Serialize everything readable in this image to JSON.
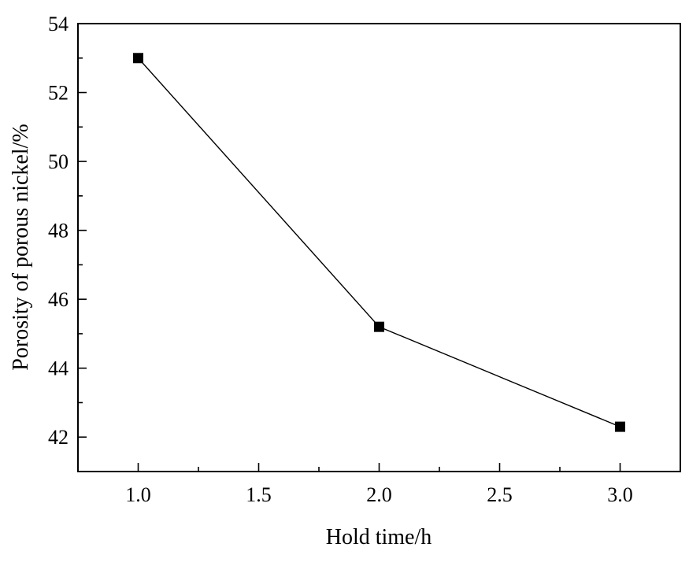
{
  "chart_data": {
    "type": "line",
    "xlabel": "Hold time/h",
    "ylabel": "Porosity of porous nickel/%",
    "xlim": [
      0.75,
      3.25
    ],
    "ylim": [
      41,
      54
    ],
    "x_ticks": [
      1.0,
      1.5,
      2.0,
      2.5,
      3.0
    ],
    "x_tick_labels": [
      "1.0",
      "1.5",
      "2.0",
      "2.5",
      "3.0"
    ],
    "x_minor_ticks": [
      1.25,
      1.75,
      2.25,
      2.75
    ],
    "y_ticks": [
      42,
      44,
      46,
      48,
      50,
      52,
      54
    ],
    "y_tick_labels": [
      "42",
      "44",
      "46",
      "48",
      "50",
      "52",
      "54"
    ],
    "y_minor_ticks": [
      41,
      43,
      45,
      47,
      49,
      51,
      53
    ],
    "grid": false,
    "legend": "none",
    "series": [
      {
        "x": [
          1.0,
          2.0,
          3.0
        ],
        "y": [
          53.0,
          45.2,
          42.3
        ],
        "marker": "square",
        "color": "#000000"
      }
    ]
  }
}
